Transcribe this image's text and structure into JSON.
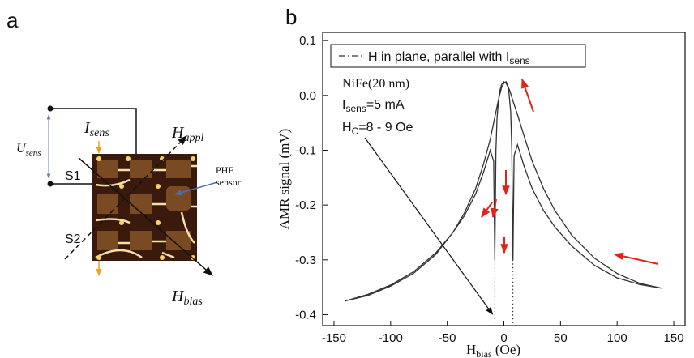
{
  "panels": [
    "a",
    "b"
  ],
  "diagram": {
    "u_label": {
      "main": "U",
      "sub": "sens"
    },
    "i_label": {
      "main": "I",
      "sub": "sens"
    },
    "h_appl_label": {
      "main": "H",
      "sub": "appl"
    },
    "h_bias_label": {
      "main": "H",
      "sub": "bias"
    },
    "s1": "S1",
    "s2": "S2",
    "sensor_label": [
      "PHE",
      "sensor"
    ]
  },
  "chart_data": {
    "type": "line",
    "y_label": "AMR signal (mV)",
    "x_label": {
      "main": "H",
      "sub": "bias",
      "unit": " (Oe)"
    },
    "xlim": [
      -160,
      160
    ],
    "ylim": [
      -0.42,
      0.115
    ],
    "xticks": [
      -150,
      -100,
      -50,
      0,
      50,
      100,
      150
    ],
    "yticks": [
      0.1,
      {
        "value": 0,
        "label": "0.0"
      },
      -0.1,
      -0.2,
      -0.3,
      -0.4
    ],
    "legend_position": "top-left",
    "annotations": [
      {
        "text": "NiFe(20 nm)"
      },
      {
        "main": "I",
        "sub": "sens",
        "rest": "=5 mA"
      },
      {
        "main": "H",
        "sub": "C",
        "rest": "=8 - 9 Oe"
      }
    ],
    "coercive_x": [
      -8,
      8
    ],
    "series": [
      {
        "name": "H in plane, parallel with I",
        "name_sub": "sens",
        "color": "#333333",
        "x": [
          140,
          120,
          100,
          80,
          60,
          45,
          35,
          25,
          18,
          12,
          8,
          5,
          2,
          0,
          -2,
          -4,
          -6,
          -7,
          -8,
          -9,
          -12,
          -18,
          -25,
          -35,
          -45,
          -60,
          -80,
          -100,
          -120,
          -140,
          -120,
          -100,
          -80,
          -60,
          -45,
          -35,
          -25,
          -18,
          -12,
          -8,
          -5,
          -2,
          0,
          2,
          4,
          6,
          7,
          8,
          9,
          12,
          18,
          25,
          35,
          45,
          60,
          80,
          100,
          120,
          140
        ],
        "values": [
          -0.352,
          -0.343,
          -0.325,
          -0.297,
          -0.255,
          -0.21,
          -0.17,
          -0.12,
          -0.075,
          -0.035,
          -0.01,
          0.01,
          0.022,
          0.025,
          0.02,
          0.005,
          -0.04,
          -0.1,
          -0.3,
          -0.12,
          -0.1,
          -0.14,
          -0.18,
          -0.22,
          -0.25,
          -0.29,
          -0.325,
          -0.348,
          -0.365,
          -0.375,
          -0.363,
          -0.346,
          -0.322,
          -0.287,
          -0.25,
          -0.215,
          -0.17,
          -0.125,
          -0.08,
          -0.04,
          -0.01,
          0.015,
          0.022,
          0.025,
          0.015,
          -0.03,
          -0.1,
          -0.3,
          -0.11,
          -0.09,
          -0.13,
          -0.17,
          -0.21,
          -0.24,
          -0.275,
          -0.31,
          -0.333,
          -0.345,
          -0.352
        ]
      }
    ]
  }
}
